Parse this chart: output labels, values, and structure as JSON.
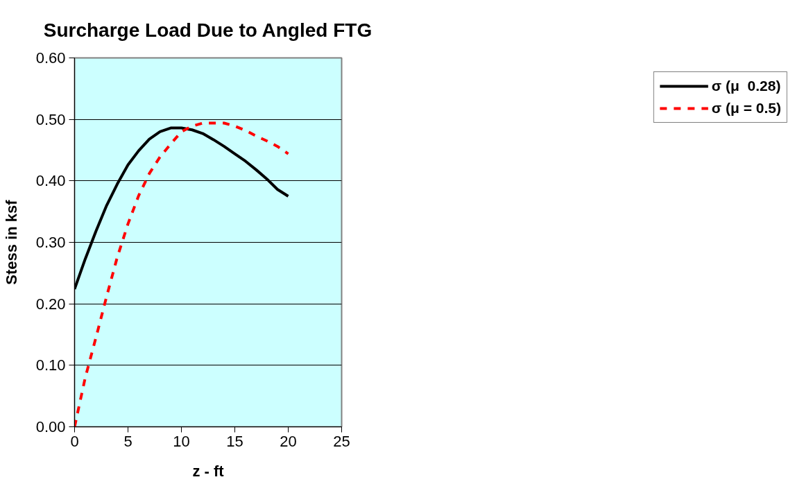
{
  "chart_data": {
    "type": "line",
    "title": "Surcharge Load Due to Angled FTG",
    "xlabel": "z - ft",
    "ylabel": "Stess in ksf",
    "x": [
      0,
      1,
      2,
      3,
      4,
      5,
      6,
      7,
      8,
      9,
      10,
      11,
      12,
      13,
      14,
      15,
      16,
      17,
      18,
      19,
      20
    ],
    "series": [
      {
        "name": "σ (μ  0.28)",
        "color": "#000000",
        "line_style": "solid",
        "values": [
          0.224,
          0.273,
          0.318,
          0.36,
          0.395,
          0.426,
          0.449,
          0.468,
          0.48,
          0.486,
          0.486,
          0.483,
          0.477,
          0.467,
          0.456,
          0.444,
          0.432,
          0.418,
          0.403,
          0.386,
          0.375
        ]
      },
      {
        "name": "σ (μ = 0.5)",
        "color": "#ff0000",
        "line_style": "dashed",
        "values": [
          0.0,
          0.08,
          0.145,
          0.212,
          0.276,
          0.33,
          0.376,
          0.412,
          0.439,
          0.46,
          0.48,
          0.489,
          0.494,
          0.494,
          0.494,
          0.489,
          0.482,
          0.473,
          0.465,
          0.456,
          0.444
        ]
      }
    ],
    "xlim": [
      0,
      25
    ],
    "xticks": [
      0,
      5,
      10,
      15,
      20,
      25
    ],
    "ylim": [
      0,
      0.6
    ],
    "yticks": [
      {
        "value": 0,
        "label": "0.00"
      },
      {
        "value": 0.1,
        "label": "0.10"
      },
      {
        "value": 0.2,
        "label": "0.20"
      },
      {
        "value": 0.3,
        "label": "0.30"
      },
      {
        "value": 0.4,
        "label": "0.40"
      },
      {
        "value": 0.5,
        "label": "0.50"
      },
      {
        "value": 0.6,
        "label": "0.60"
      }
    ],
    "grid": "y",
    "legend": "right",
    "marker": "none"
  }
}
